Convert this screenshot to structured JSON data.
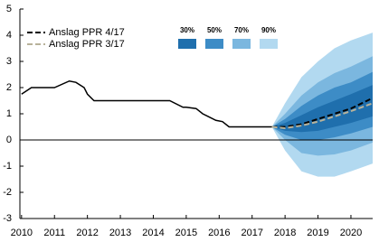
{
  "chart_data": {
    "type": "line",
    "xlim": [
      2009.95,
      2020.66
    ],
    "xticks": [
      2010,
      2011,
      2012,
      2013,
      2014,
      2015,
      2016,
      2017,
      2018,
      2019,
      2020
    ],
    "ylim": [
      -3,
      5
    ],
    "yticks": [
      -3,
      -2,
      -1,
      0,
      1,
      2,
      3,
      4,
      5
    ],
    "series": [
      {
        "color": "#000000",
        "dashed": false,
        "x": [
          2010,
          2010.3,
          2011.0,
          2011.45,
          2011.65,
          2011.9,
          2012.0,
          2012.2,
          2014.5,
          2014.9,
          2015.0,
          2015.3,
          2015.5,
          2015.9,
          2016.1,
          2016.3,
          2017.6
        ],
        "values": [
          1.75,
          2.0,
          2.0,
          2.25,
          2.2,
          2.0,
          1.75,
          1.5,
          1.5,
          1.25,
          1.25,
          1.2,
          1.0,
          0.75,
          0.7,
          0.5,
          0.5
        ]
      },
      {
        "name": "Anslag PPR 4/17",
        "color": "#000000",
        "dashed": true,
        "x": [
          2017.6,
          2018.0,
          2018.5,
          2019.0,
          2019.5,
          2020.0,
          2020.66
        ],
        "values": [
          0.5,
          0.5,
          0.6,
          0.8,
          1.0,
          1.2,
          1.6
        ]
      },
      {
        "name": "Anslag PPR 3/17",
        "color": "#b8b29a",
        "dashed": true,
        "x": [
          2017.6,
          2018.0,
          2018.5,
          2019.0,
          2019.5,
          2020.0,
          2020.66
        ],
        "values": [
          0.5,
          0.45,
          0.55,
          0.7,
          0.9,
          1.1,
          1.4
        ]
      }
    ],
    "bands_x": [
      2017.6,
      2018.0,
      2018.5,
      2019.0,
      2019.5,
      2020.0,
      2020.66
    ],
    "bands": [
      {
        "name": "30%",
        "color": "#1f6fad",
        "lower": [
          0.5,
          0.35,
          0.3,
          0.35,
          0.5,
          0.65,
          0.9
        ],
        "upper": [
          0.5,
          0.65,
          0.95,
          1.25,
          1.5,
          1.75,
          2.1
        ]
      },
      {
        "name": "50%",
        "color": "#3d8cc6",
        "lower": [
          0.5,
          0.2,
          0.0,
          0.0,
          0.1,
          0.25,
          0.5
        ],
        "upper": [
          0.5,
          0.8,
          1.3,
          1.7,
          2.0,
          2.2,
          2.6
        ]
      },
      {
        "name": "70%",
        "color": "#7bb7df",
        "lower": [
          0.5,
          0.0,
          -0.5,
          -0.6,
          -0.55,
          -0.4,
          -0.1
        ],
        "upper": [
          0.5,
          1.0,
          1.7,
          2.2,
          2.55,
          2.8,
          3.2
        ]
      },
      {
        "name": "90%",
        "color": "#b2d9f0",
        "lower": [
          0.5,
          -0.4,
          -1.2,
          -1.4,
          -1.4,
          -1.2,
          -0.9
        ],
        "upper": [
          0.5,
          1.4,
          2.4,
          3.0,
          3.5,
          3.8,
          4.1
        ]
      }
    ],
    "zero_line": true
  }
}
